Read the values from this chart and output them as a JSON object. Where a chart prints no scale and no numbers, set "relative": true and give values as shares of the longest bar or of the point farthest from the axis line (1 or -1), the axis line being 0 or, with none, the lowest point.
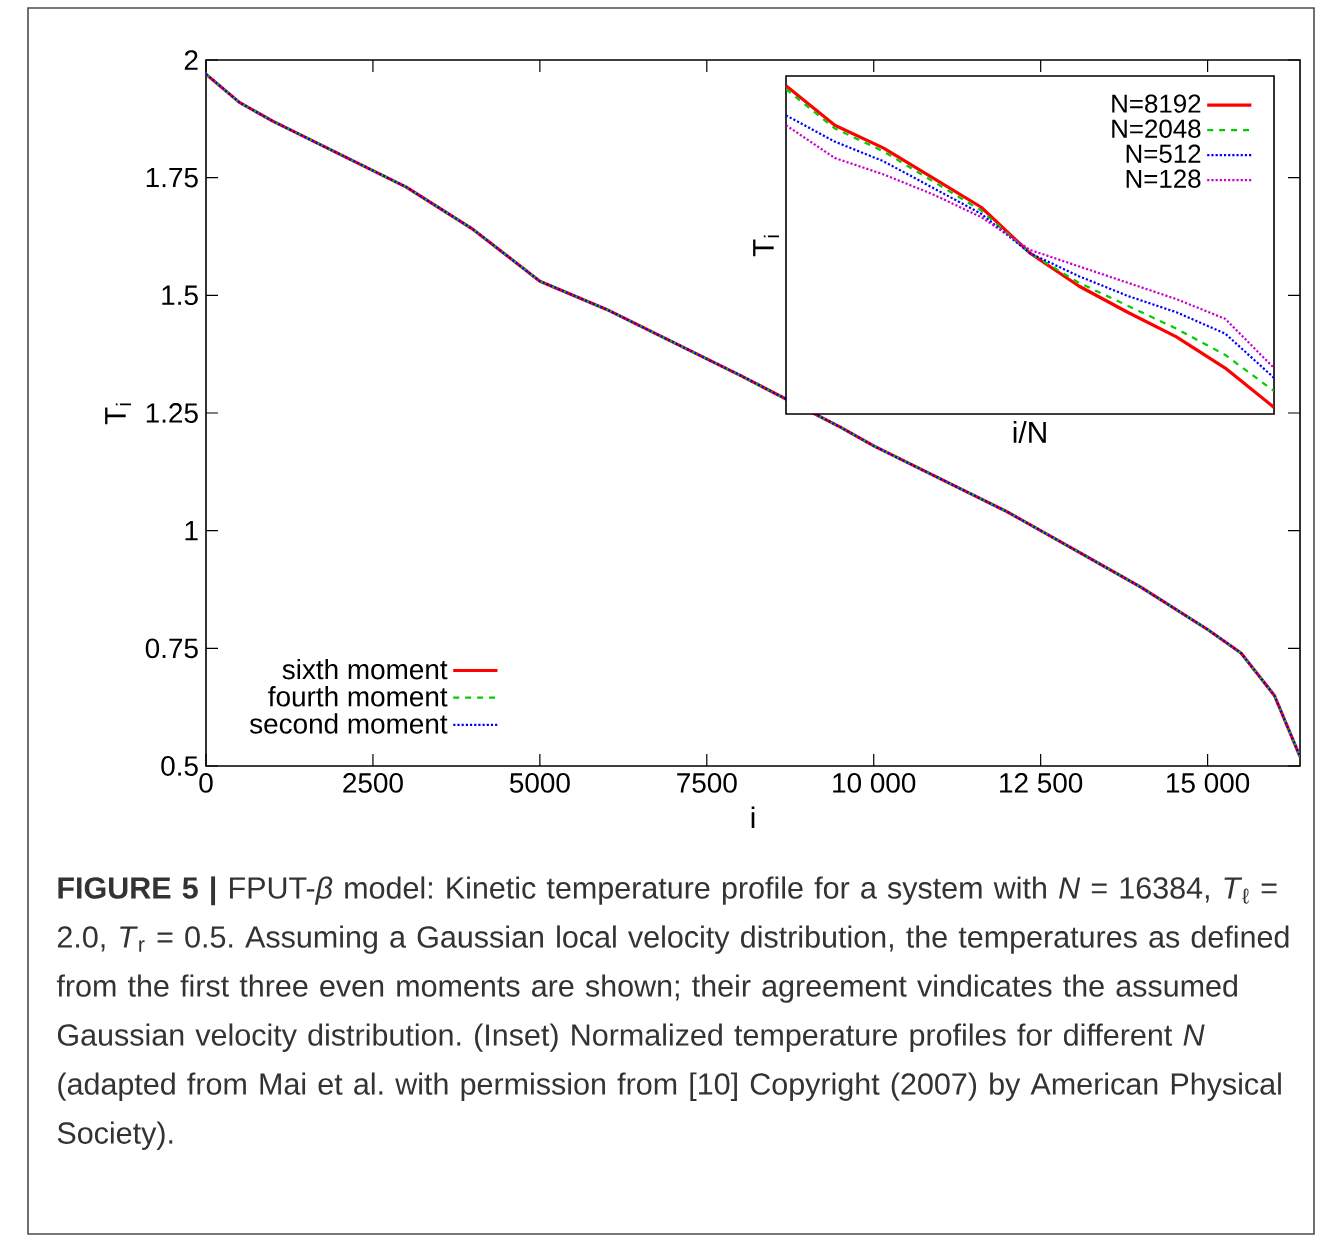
{
  "chart_data": [
    {
      "type": "line",
      "xlabel": "i",
      "ylabel": "T$_{i}$",
      "x": [
        0,
        500,
        1000,
        2000,
        3000,
        4000,
        5000,
        6000,
        7000,
        8000,
        9500,
        10000,
        11000,
        12000,
        13000,
        14000,
        15000,
        15500,
        16000,
        16384
      ],
      "series": [
        {
          "name": "sixth moment",
          "color": "#ff0000",
          "line_style": "solid",
          "values": [
            1.97,
            1.91,
            1.87,
            1.8,
            1.73,
            1.64,
            1.53,
            1.47,
            1.4,
            1.33,
            1.22,
            1.18,
            1.11,
            1.04,
            0.96,
            0.88,
            0.79,
            0.74,
            0.65,
            0.52
          ]
        },
        {
          "name": "fourth moment",
          "color": "#00cc00",
          "line_style": "dashed",
          "values": [
            1.97,
            1.91,
            1.87,
            1.8,
            1.73,
            1.64,
            1.53,
            1.47,
            1.4,
            1.33,
            1.22,
            1.18,
            1.11,
            1.04,
            0.96,
            0.88,
            0.79,
            0.74,
            0.65,
            0.52
          ]
        },
        {
          "name": "second moment",
          "color": "#0000ff",
          "line_style": "dotted",
          "values": [
            1.97,
            1.91,
            1.87,
            1.8,
            1.73,
            1.64,
            1.53,
            1.47,
            1.4,
            1.33,
            1.22,
            1.18,
            1.11,
            1.04,
            0.96,
            0.88,
            0.79,
            0.74,
            0.65,
            0.52
          ]
        }
      ],
      "xlim": [
        0,
        16384
      ],
      "ylim": [
        0.5,
        2
      ],
      "xticks": [
        0,
        2500,
        5000,
        7500,
        {
          "value": 10000,
          "label": "10 000"
        },
        {
          "value": 12500,
          "label": "12 500"
        },
        {
          "value": 15000,
          "label": "15 000"
        }
      ],
      "yticks": [
        0.5,
        0.75,
        1,
        1.25,
        1.5,
        1.75,
        2
      ],
      "legend": "bottom left",
      "annotations": [
        "**FIGURE 5 |** FPUT-*β* model: Kinetic temperature profile for a system with *N* = 16384, *T*$_{ℓ}$ = 2.0, *T*$_{r}$ = 0.5. Assuming a Gaussian local velocity distribution, the temperatures as defined from the first three even moments are shown; their agreement vindicates the assumed Gaussian velocity distribution. (Inset) Normalized temperature profiles for different *N* (adapted from Mai et al. with permission from [10] Copyright (2007) by American Physical Society)."
      ]
    },
    {
      "type": "line",
      "relative": true,
      "xlabel": "i/N",
      "ylabel": "T$_{i}$",
      "categories": [
        null,
        null,
        null,
        null,
        null,
        null,
        null,
        null,
        null,
        null,
        null
      ],
      "series": [
        {
          "name": "N=8192",
          "color": "#ff0000",
          "line_style": "solid",
          "values": [
            1.0,
            0.88,
            0.81,
            0.72,
            0.63,
            0.49,
            0.39,
            0.31,
            0.235,
            0.14,
            0.02
          ]
        },
        {
          "name": "N=2048",
          "color": "#00cc00",
          "line_style": "dashed",
          "values": [
            0.99,
            0.87,
            0.8,
            0.71,
            0.62,
            0.49,
            0.4,
            0.33,
            0.26,
            0.18,
            0.07
          ]
        },
        {
          "name": "N=512",
          "color": "#0000ff",
          "line_style": "dotted",
          "values": [
            0.91,
            0.83,
            0.77,
            0.69,
            0.61,
            0.49,
            0.42,
            0.36,
            0.31,
            0.245,
            0.11
          ]
        },
        {
          "name": "N=128",
          "color": "#cc00cc",
          "line_style": "dotted",
          "values": [
            0.88,
            0.78,
            0.73,
            0.67,
            0.6,
            0.5,
            0.45,
            0.4,
            0.35,
            0.29,
            0.14
          ]
        }
      ],
      "legend": "top right"
    }
  ]
}
